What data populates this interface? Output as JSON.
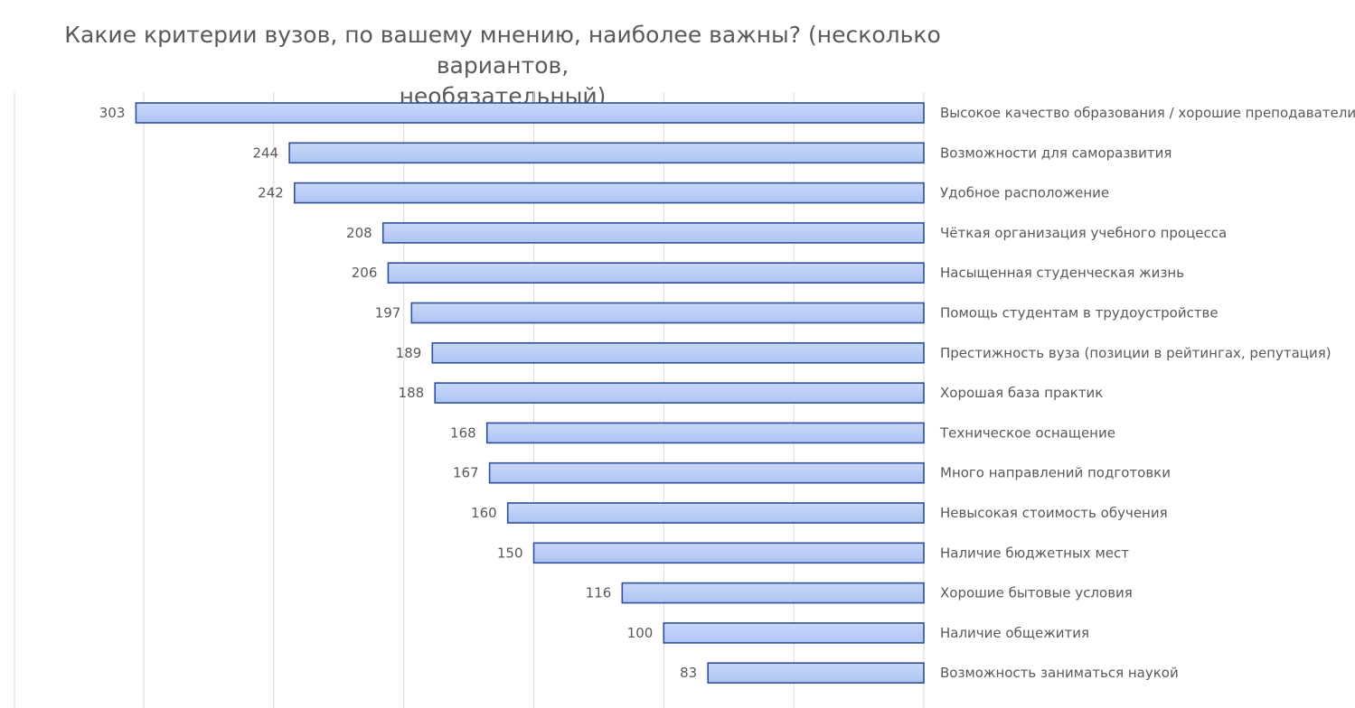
{
  "chart_data": {
    "type": "bar",
    "orientation": "horizontal",
    "title": "Какие критерии вузов, по вашему мнению, наиболее важны? (несколько вариантов, необязательный)",
    "title_lines": [
      "Какие критерии вузов, по вашему мнению, наиболее важны? (несколько вариантов,",
      "необязательный)"
    ],
    "categories": [
      "Высокое качество образования / хорошие преподаватели",
      "Возможности для саморазвития",
      "Удобное расположение",
      "Чёткая организация учебного процесса",
      "Насыщенная студенческая жизнь",
      "Помощь студентам в трудоустройстве",
      "Престижность вуза (позиции в рейтингах, репутация)",
      "Хорошая база практик",
      "Техническое оснащение",
      "Много направлений подготовки",
      "Невысокая стоимость обучения",
      "Наличие бюджетных мест",
      "Хорошие бытовые условия",
      "Наличие общежития",
      "Возможность заниматься наукой"
    ],
    "values": [
      303,
      244,
      242,
      208,
      206,
      197,
      189,
      188,
      168,
      167,
      160,
      150,
      116,
      100,
      83
    ],
    "xlim": [
      0,
      300
    ],
    "axis_reversed": true,
    "grid": true,
    "legend": "none",
    "colors": {
      "bar_fill_top": "#c9d8f8",
      "bar_fill_bottom": "#aec4f4",
      "bar_stroke": "#2f4f9a",
      "grid": "#d9d9d9",
      "text": "#595959"
    }
  }
}
